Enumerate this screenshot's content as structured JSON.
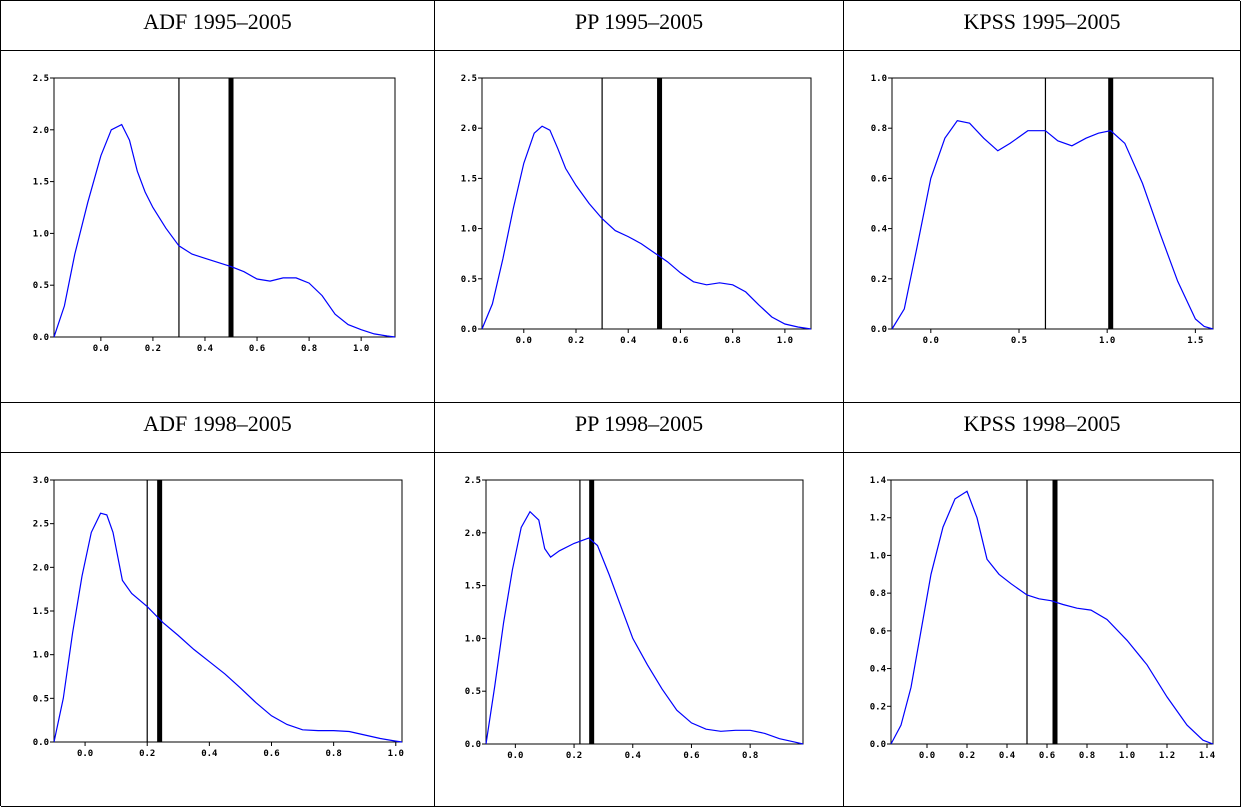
{
  "chart_data": [
    {
      "type": "line",
      "title": "ADF 1995–2005",
      "xlim": [
        -0.18,
        1.13
      ],
      "ylim": [
        0,
        2.5
      ],
      "xticks": [
        0.0,
        0.2,
        0.4,
        0.6,
        0.8,
        1.0
      ],
      "xtick_labels": [
        "0.0",
        "0.2",
        "0.4",
        "0.6",
        "0.8",
        "1.0"
      ],
      "yticks": [
        0,
        0.5,
        1.0,
        1.5,
        2.0,
        2.5
      ],
      "ytick_labels": [
        "0.0",
        "0.5",
        "1.0",
        "1.5",
        "2.0",
        "2.5"
      ],
      "vlines": [
        {
          "x": 0.3,
          "weight": "thin"
        },
        {
          "x": 0.5,
          "weight": "thick"
        }
      ],
      "color": "#0000ff",
      "x": [
        -0.18,
        -0.14,
        -0.1,
        -0.05,
        0.0,
        0.04,
        0.08,
        0.11,
        0.14,
        0.17,
        0.2,
        0.25,
        0.3,
        0.35,
        0.4,
        0.45,
        0.5,
        0.55,
        0.6,
        0.65,
        0.7,
        0.75,
        0.8,
        0.85,
        0.9,
        0.95,
        1.0,
        1.05,
        1.1,
        1.13
      ],
      "y": [
        0.0,
        0.3,
        0.8,
        1.3,
        1.75,
        2.0,
        2.05,
        1.9,
        1.6,
        1.4,
        1.25,
        1.05,
        0.88,
        0.8,
        0.76,
        0.72,
        0.68,
        0.63,
        0.56,
        0.54,
        0.57,
        0.57,
        0.52,
        0.4,
        0.22,
        0.12,
        0.07,
        0.03,
        0.01,
        0.0
      ]
    },
    {
      "type": "line",
      "title": "PP 1995–2005",
      "xlim": [
        -0.16,
        1.1
      ],
      "ylim": [
        0,
        2.5
      ],
      "xticks": [
        0.0,
        0.2,
        0.4,
        0.6,
        0.8,
        1.0
      ],
      "xtick_labels": [
        "0.0",
        "0.2",
        "0.4",
        "0.6",
        "0.8",
        "1.0"
      ],
      "yticks": [
        0,
        0.5,
        1.0,
        1.5,
        2.0,
        2.5
      ],
      "ytick_labels": [
        "0.0",
        "0.5",
        "1.0",
        "1.5",
        "2.0",
        "2.5"
      ],
      "vlines": [
        {
          "x": 0.3,
          "weight": "thin"
        },
        {
          "x": 0.52,
          "weight": "thick"
        }
      ],
      "color": "#0000ff",
      "x": [
        -0.16,
        -0.12,
        -0.08,
        -0.04,
        0.0,
        0.04,
        0.07,
        0.1,
        0.13,
        0.16,
        0.2,
        0.25,
        0.3,
        0.35,
        0.4,
        0.45,
        0.5,
        0.55,
        0.6,
        0.65,
        0.7,
        0.75,
        0.8,
        0.85,
        0.9,
        0.95,
        1.0,
        1.05,
        1.1
      ],
      "y": [
        0.0,
        0.25,
        0.7,
        1.2,
        1.65,
        1.95,
        2.02,
        1.98,
        1.8,
        1.6,
        1.43,
        1.25,
        1.1,
        0.98,
        0.92,
        0.85,
        0.76,
        0.67,
        0.56,
        0.47,
        0.44,
        0.46,
        0.44,
        0.37,
        0.24,
        0.12,
        0.05,
        0.02,
        0.0
      ]
    },
    {
      "type": "line",
      "title": "KPSS 1995–2005",
      "xlim": [
        -0.22,
        1.6
      ],
      "ylim": [
        0,
        1.0
      ],
      "xticks": [
        0.0,
        0.5,
        1.0,
        1.5
      ],
      "xtick_labels": [
        "0.0",
        "0.5",
        "1.0",
        "1.5"
      ],
      "yticks": [
        0,
        0.2,
        0.4,
        0.6,
        0.8,
        1.0
      ],
      "ytick_labels": [
        "0.0",
        "0.2",
        "0.4",
        "0.6",
        "0.8",
        "1.0"
      ],
      "vlines": [
        {
          "x": 0.65,
          "weight": "thin"
        },
        {
          "x": 1.02,
          "weight": "thick"
        }
      ],
      "color": "#0000ff",
      "x": [
        -0.22,
        -0.15,
        -0.08,
        0.0,
        0.08,
        0.15,
        0.22,
        0.3,
        0.38,
        0.45,
        0.55,
        0.65,
        0.72,
        0.8,
        0.88,
        0.95,
        1.02,
        1.1,
        1.2,
        1.3,
        1.4,
        1.5,
        1.55,
        1.6
      ],
      "y": [
        0.0,
        0.08,
        0.32,
        0.6,
        0.76,
        0.83,
        0.82,
        0.76,
        0.71,
        0.74,
        0.79,
        0.79,
        0.75,
        0.73,
        0.76,
        0.78,
        0.79,
        0.74,
        0.58,
        0.38,
        0.19,
        0.04,
        0.01,
        0.0
      ]
    },
    {
      "type": "line",
      "title": "ADF 1998–2005",
      "xlim": [
        -0.1,
        1.02
      ],
      "ylim": [
        0,
        3.0
      ],
      "xticks": [
        0.0,
        0.2,
        0.4,
        0.6,
        0.8,
        1.0
      ],
      "xtick_labels": [
        "0.0",
        "0.2",
        "0.4",
        "0.6",
        "0.8",
        "1.0"
      ],
      "yticks": [
        0,
        0.5,
        1.0,
        1.5,
        2.0,
        2.5,
        3.0
      ],
      "ytick_labels": [
        "0.0",
        "0.5",
        "1.0",
        "1.5",
        "2.0",
        "2.5",
        "3.0"
      ],
      "vlines": [
        {
          "x": 0.2,
          "weight": "thin"
        },
        {
          "x": 0.24,
          "weight": "thick"
        }
      ],
      "color": "#0000ff",
      "x": [
        -0.1,
        -0.07,
        -0.04,
        -0.01,
        0.02,
        0.05,
        0.07,
        0.09,
        0.12,
        0.15,
        0.2,
        0.25,
        0.3,
        0.35,
        0.4,
        0.45,
        0.5,
        0.55,
        0.6,
        0.65,
        0.7,
        0.75,
        0.8,
        0.85,
        0.9,
        0.95,
        1.0,
        1.02
      ],
      "y": [
        0.0,
        0.5,
        1.25,
        1.9,
        2.4,
        2.62,
        2.6,
        2.4,
        1.85,
        1.7,
        1.55,
        1.37,
        1.22,
        1.06,
        0.92,
        0.78,
        0.62,
        0.45,
        0.3,
        0.2,
        0.14,
        0.13,
        0.13,
        0.12,
        0.08,
        0.04,
        0.01,
        0.0
      ]
    },
    {
      "type": "line",
      "title": "PP 1998–2005",
      "xlim": [
        -0.1,
        0.98
      ],
      "ylim": [
        0,
        2.5
      ],
      "xticks": [
        0.0,
        0.2,
        0.4,
        0.6,
        0.8
      ],
      "xtick_labels": [
        "0.0",
        "0.2",
        "0.4",
        "0.6",
        "0.8"
      ],
      "yticks": [
        0,
        0.5,
        1.0,
        1.5,
        2.0,
        2.5
      ],
      "ytick_labels": [
        "0.0",
        "0.5",
        "1.0",
        "1.5",
        "2.0",
        "2.5"
      ],
      "vlines": [
        {
          "x": 0.22,
          "weight": "thin"
        },
        {
          "x": 0.26,
          "weight": "thick"
        }
      ],
      "color": "#0000ff",
      "x": [
        -0.1,
        -0.07,
        -0.04,
        -0.01,
        0.02,
        0.05,
        0.08,
        0.1,
        0.12,
        0.15,
        0.2,
        0.25,
        0.28,
        0.32,
        0.36,
        0.4,
        0.45,
        0.5,
        0.55,
        0.6,
        0.65,
        0.7,
        0.75,
        0.8,
        0.85,
        0.9,
        0.95,
        0.98
      ],
      "y": [
        0.0,
        0.55,
        1.15,
        1.65,
        2.05,
        2.2,
        2.12,
        1.85,
        1.77,
        1.83,
        1.9,
        1.95,
        1.88,
        1.6,
        1.3,
        1.0,
        0.75,
        0.52,
        0.32,
        0.2,
        0.14,
        0.12,
        0.13,
        0.13,
        0.1,
        0.05,
        0.02,
        0.0
      ]
    },
    {
      "type": "line",
      "title": "KPSS 1998–2005",
      "xlim": [
        -0.18,
        1.43
      ],
      "ylim": [
        0,
        1.4
      ],
      "xticks": [
        0.0,
        0.2,
        0.4,
        0.6,
        0.8,
        1.0,
        1.2,
        1.4
      ],
      "xtick_labels": [
        "0.0",
        "0.2",
        "0.4",
        "0.6",
        "0.8",
        "1.0",
        "1.2",
        "1.4"
      ],
      "yticks": [
        0,
        0.2,
        0.4,
        0.6,
        0.8,
        1.0,
        1.2,
        1.4
      ],
      "ytick_labels": [
        "0.0",
        "0.2",
        "0.4",
        "0.6",
        "0.8",
        "1.0",
        "1.2",
        "1.4"
      ],
      "vlines": [
        {
          "x": 0.5,
          "weight": "thin"
        },
        {
          "x": 0.64,
          "weight": "thick"
        }
      ],
      "color": "#0000ff",
      "x": [
        -0.18,
        -0.13,
        -0.08,
        -0.03,
        0.02,
        0.08,
        0.14,
        0.2,
        0.25,
        0.3,
        0.36,
        0.42,
        0.5,
        0.56,
        0.62,
        0.68,
        0.75,
        0.82,
        0.9,
        1.0,
        1.1,
        1.2,
        1.3,
        1.38,
        1.43
      ],
      "y": [
        0.0,
        0.1,
        0.3,
        0.6,
        0.9,
        1.15,
        1.3,
        1.34,
        1.2,
        0.98,
        0.9,
        0.85,
        0.79,
        0.77,
        0.76,
        0.74,
        0.72,
        0.71,
        0.66,
        0.55,
        0.42,
        0.25,
        0.1,
        0.02,
        0.0
      ]
    }
  ]
}
